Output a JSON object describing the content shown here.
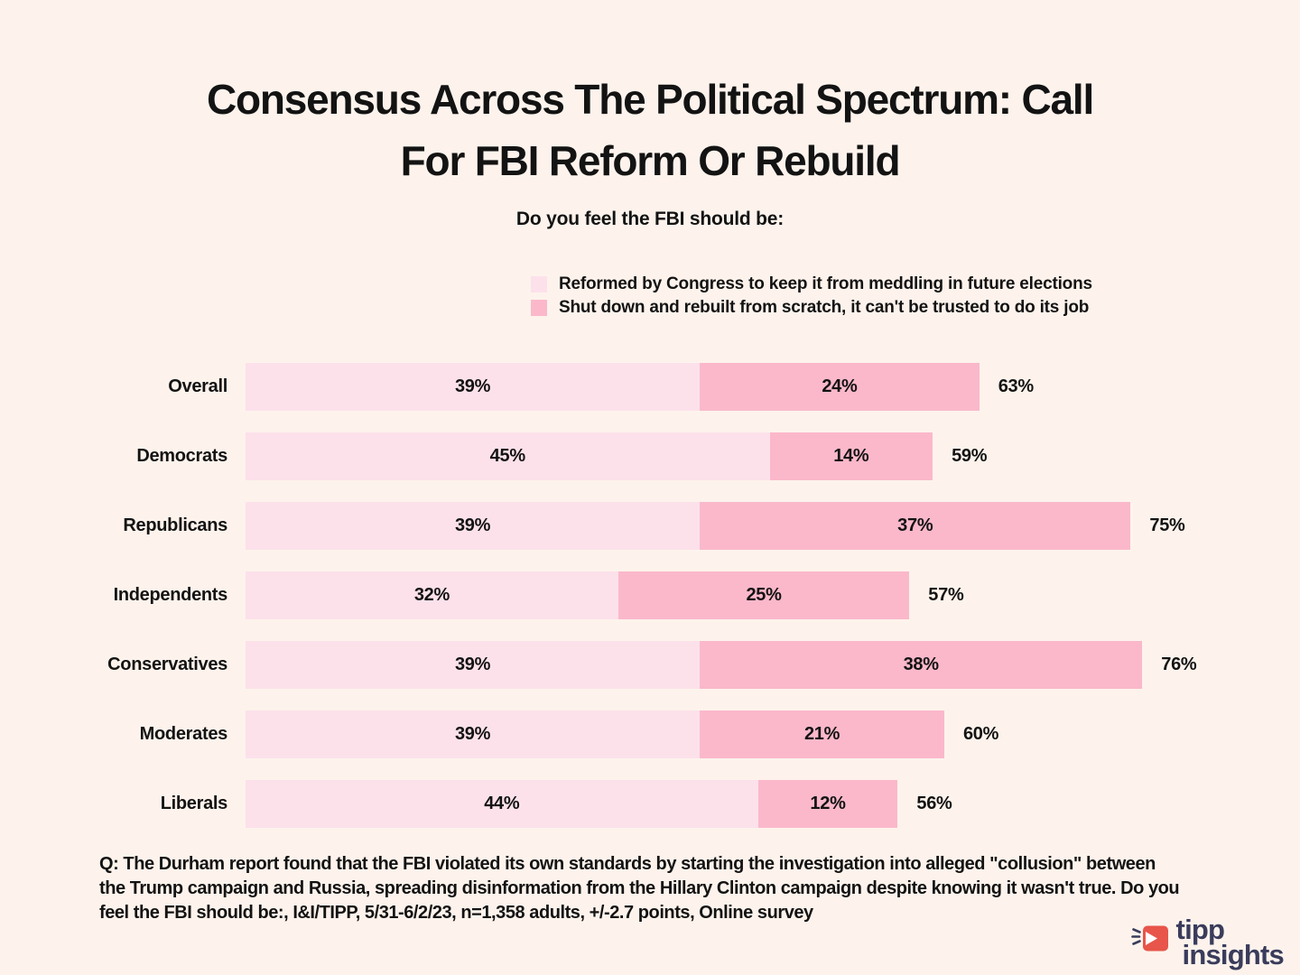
{
  "title": {
    "lines": [
      "Consensus Across The Political Spectrum: Call",
      "For FBI Reform Or Rebuild"
    ],
    "full": "Consensus Across The Political Spectrum: Call For FBI Reform Or Rebuild"
  },
  "subtitle": "Do you feel the FBI should be:",
  "legend": [
    {
      "label": "Reformed by Congress to keep it from meddling in future elections",
      "color": "#fce1eb"
    },
    {
      "label": "Shut down and rebuilt from scratch, it can't be trusted to do its job",
      "color": "#fbb8cb"
    }
  ],
  "chart_data": {
    "type": "bar",
    "orientation": "horizontal",
    "stacked": true,
    "grid": false,
    "legend_position": "top",
    "xlim": [
      0,
      77
    ],
    "value_suffix": "%",
    "categories": [
      "Overall",
      "Democrats",
      "Republicans",
      "Independents",
      "Conservatives",
      "Moderates",
      "Liberals"
    ],
    "series": [
      {
        "name": "Reformed by Congress to keep it from meddling in future elections",
        "color": "#fce1eb",
        "values": [
          39,
          45,
          39,
          32,
          39,
          39,
          44
        ]
      },
      {
        "name": "Shut down and rebuilt from scratch, it can't be trusted to do its job",
        "color": "#fbb8cb",
        "values": [
          24,
          14,
          37,
          25,
          38,
          21,
          12
        ]
      }
    ],
    "totals": [
      "63%",
      "59%",
      "75%",
      "57%",
      "76%",
      "60%",
      "56%"
    ]
  },
  "footer": {
    "note": "Q: The Durham report found that the FBI violated its own standards by starting the investigation into alleged \"collusion\" between the Trump campaign and Russia, spreading disinformation from the Hillary Clinton campaign despite knowing it wasn't true. Do you feel the FBI should be:, I&I/TIPP, 5/31-6/2/23, n=1,358 adults, +/-2.7 points, Online survey"
  },
  "logo": {
    "line1": "tipp",
    "line2": "insights",
    "icon": "tipp-insights-megaphone-icon",
    "icon_color": "#e8554a",
    "text_color": "#3a3c5b"
  },
  "colors": {
    "background": "#fdf3ec",
    "text": "#131313",
    "reform_pink": "#fce1eb",
    "rebuild_pink": "#fbb8cb"
  }
}
